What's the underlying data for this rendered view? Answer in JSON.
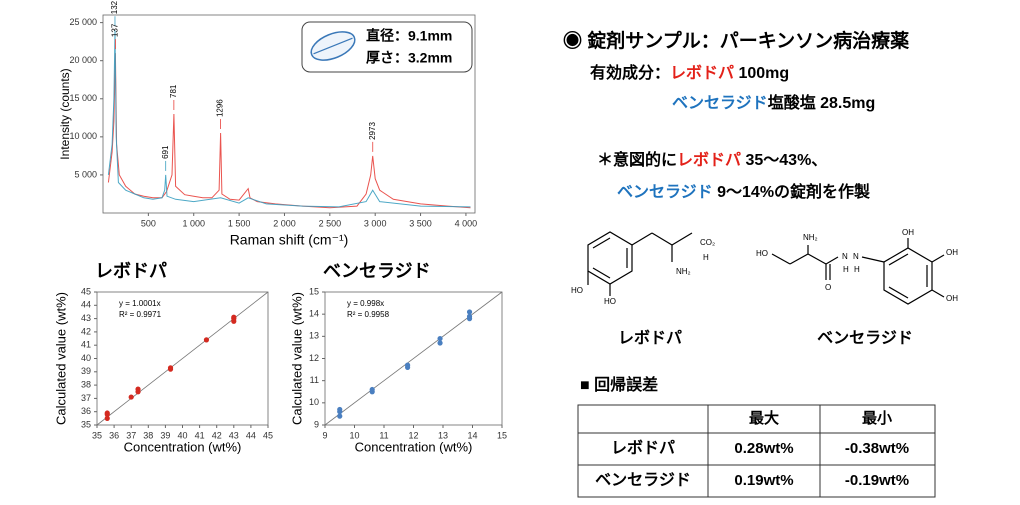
{
  "chart_data": [
    {
      "type": "line",
      "x_label": "Raman shift (cm⁻¹)",
      "y_label": "Intensity (counts)",
      "xlim": [
        0,
        4100
      ],
      "ylim": [
        0,
        26000
      ],
      "xticks": [
        500,
        {
          "value": 1000,
          "label": "1 000"
        },
        {
          "value": 1500,
          "label": "1 500"
        },
        {
          "value": 2000,
          "label": "2 000"
        },
        {
          "value": 2500,
          "label": "2 500"
        },
        {
          "value": 3000,
          "label": "3 000"
        },
        {
          "value": 3500,
          "label": "3 500"
        },
        {
          "value": 4000,
          "label": "4 000"
        }
      ],
      "yticks": [
        {
          "value": 5000,
          "label": "5 000"
        },
        {
          "value": 10000,
          "label": "10 000"
        },
        {
          "value": 15000,
          "label": "15 000"
        },
        {
          "value": 20000,
          "label": "20 000"
        },
        {
          "value": 25000,
          "label": "25 000"
        }
      ],
      "series": [
        {
          "color": "#e8413c",
          "x": [
            60,
            100,
            120,
            137,
            150,
            180,
            250,
            350,
            450,
            550,
            650,
            700,
            760,
            781,
            800,
            900,
            1000,
            1100,
            1200,
            1280,
            1296,
            1310,
            1400,
            1500,
            1600,
            1620,
            1700,
            1900,
            2200,
            2500,
            2800,
            2900,
            2950,
            2973,
            3000,
            3050,
            3200,
            3500,
            3800,
            4050
          ],
          "values": [
            4000,
            8000,
            12000,
            21000,
            9000,
            5000,
            3500,
            2500,
            2200,
            2000,
            2000,
            2800,
            5000,
            13000,
            3500,
            2400,
            2200,
            2000,
            2000,
            3000,
            10500,
            2500,
            1800,
            1700,
            3200,
            2000,
            1500,
            1200,
            900,
            700,
            900,
            2500,
            5000,
            7500,
            4500,
            3000,
            1800,
            1200,
            900,
            700
          ]
        },
        {
          "color": "#3a9fc0",
          "x": [
            60,
            100,
            120,
            132,
            145,
            170,
            250,
            350,
            450,
            550,
            650,
            680,
            691,
            705,
            800,
            1000,
            1296,
            1500,
            1600,
            1800,
            2200,
            2600,
            2900,
            2973,
            3050,
            3500,
            4050
          ],
          "values": [
            5000,
            9000,
            15000,
            24000,
            10000,
            4000,
            3000,
            2500,
            2000,
            1800,
            2000,
            3000,
            5000,
            2200,
            1800,
            1500,
            2000,
            1300,
            2000,
            1200,
            900,
            800,
            1500,
            3000,
            1500,
            900,
            800
          ]
        }
      ],
      "annotations": [
        {
          "x": 132,
          "color": "#3a9fc0"
        },
        {
          "x": 137,
          "color": "#e8413c"
        },
        {
          "x": 691,
          "color": "#3a9fc0"
        },
        {
          "x": 781,
          "color": "#e8413c"
        },
        {
          "x": 1296,
          "color": "#e8413c"
        },
        {
          "x": 2973,
          "color": "#e8413c"
        }
      ],
      "inset": [
        "直径：9.1mm",
        "厚さ：3.2mm"
      ]
    },
    {
      "type": "scatter",
      "title": "レボドパ",
      "title_color": "#e32119",
      "x_label": "Concentration (wt%)",
      "y_label": "Calculated value (wt%)",
      "xlim": [
        35,
        45
      ],
      "ylim": [
        35,
        45
      ],
      "xticks": [
        35,
        36,
        37,
        38,
        39,
        40,
        41,
        42,
        43,
        44,
        45
      ],
      "yticks": [
        35,
        36,
        37,
        38,
        39,
        40,
        41,
        42,
        43,
        44,
        45
      ],
      "equation": [
        "y = 1.0001x",
        "R² = 0.9971"
      ],
      "series": [
        {
          "color": "#d42a20",
          "x": [
            35.6,
            35.6,
            35.6,
            37.0,
            37.4,
            37.4,
            39.3,
            39.3,
            41.4,
            43.0,
            43.0,
            43.0
          ],
          "values": [
            35.5,
            35.8,
            35.9,
            37.1,
            37.5,
            37.7,
            39.2,
            39.3,
            41.4,
            42.8,
            43.0,
            43.1
          ]
        }
      ]
    },
    {
      "type": "scatter",
      "title": "ベンセラジド",
      "title_color": "#1e73be",
      "x_label": "Concentration (wt%)",
      "y_label": "Calculated value (wt%)",
      "xlim": [
        9,
        15
      ],
      "ylim": [
        9,
        15
      ],
      "xticks": [
        9,
        10,
        11,
        12,
        13,
        14,
        15
      ],
      "yticks": [
        9,
        10,
        11,
        12,
        13,
        14,
        15
      ],
      "equation": [
        "y = 0.998x",
        "R² = 0.9958"
      ],
      "series": [
        {
          "color": "#4a7fc0",
          "x": [
            9.5,
            9.5,
            9.5,
            10.6,
            10.6,
            11.8,
            11.8,
            12.9,
            12.9,
            13.9,
            13.9,
            13.9
          ],
          "values": [
            9.4,
            9.6,
            9.7,
            10.5,
            10.6,
            11.6,
            11.7,
            12.7,
            12.9,
            13.8,
            13.9,
            14.1
          ]
        }
      ]
    }
  ],
  "heading": "◉ 錠剤サンプル：パーキンソン病治療薬",
  "lines": [
    [
      {
        "text": "有効成分："
      },
      {
        "text": "レボドパ",
        "color": "#e32119"
      },
      {
        "text": " 100mg"
      }
    ],
    [
      {
        "text": "ベンセラジド",
        "color": "#1e73be"
      },
      {
        "text": "塩酸塩 28.5mg"
      }
    ],
    [
      {
        "text": "＊意図的に"
      },
      {
        "text": "レボドパ",
        "color": "#e32119"
      },
      {
        "text": " 35〜43%、"
      }
    ],
    [
      {
        "text": "ベンセラジド",
        "color": "#1e73be"
      },
      {
        "text": " 9〜14%の錠剤を作製"
      }
    ]
  ],
  "structures": [
    {
      "name": "レボドパ",
      "color": "#e32119",
      "atoms": [
        "CO₂",
        "H",
        "NH₂",
        "HO",
        "HO"
      ]
    },
    {
      "name": "ベンセラジド",
      "color": "#1e73be",
      "atoms": [
        "HO",
        "NH₂",
        "N",
        "N",
        "H",
        "H",
        "O",
        "OH",
        "OH",
        "OH"
      ]
    }
  ],
  "table": {
    "title": "■ 回帰誤差",
    "columns": [
      "最大",
      "最小"
    ],
    "rows": [
      {
        "name": "レボドパ",
        "color": "#e32119",
        "cells": [
          "0.28wt%",
          "-0.38wt%"
        ]
      },
      {
        "name": "ベンセラジド",
        "color": "#1e73be",
        "cells": [
          "0.19wt%",
          "-0.19wt%"
        ]
      }
    ]
  }
}
